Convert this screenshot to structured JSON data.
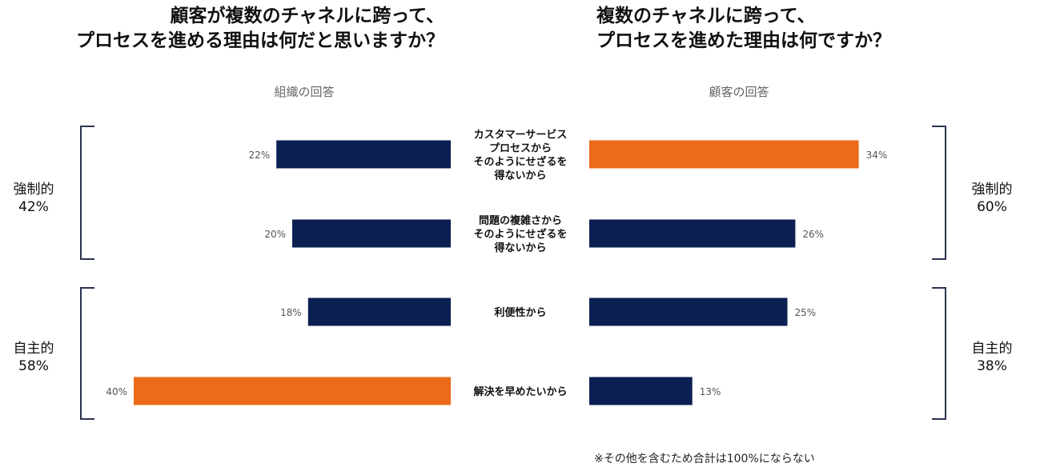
{
  "titles": {
    "left": [
      "顧客が複数のチャネルに跨って、",
      "プロセスを進める理由は何だと思いますか？"
    ],
    "right": [
      "複数のチャネルに跨って、",
      "プロセスを進めた理由は何ですか？"
    ]
  },
  "colors": {
    "navy": "#0b1f52",
    "orange": "#ec6a1a",
    "bracket": "#2b3450"
  },
  "groups": {
    "left": [
      {
        "name": "強制的",
        "value": "42%"
      },
      {
        "name": "自主的",
        "value": "58%"
      }
    ],
    "right": [
      {
        "name": "強制的",
        "value": "60%"
      },
      {
        "name": "自主的",
        "value": "38%"
      }
    ]
  },
  "note": "※その他を含むため合計は100%にならない",
  "chart_data": {
    "type": "bar",
    "orientation": "horizontal-butterfly",
    "categories": [
      "カスタマーサービス\nプロセスから\nそのようにせざるを\n得ないから",
      "問題の複雑さから\nそのようにせざるを\n得ないから",
      "利便性から",
      "解決を早めたいから"
    ],
    "series": [
      {
        "name": "組織の回答",
        "values": [
          22,
          20,
          18,
          40
        ],
        "highlight_index": 3
      },
      {
        "name": "顧客の回答",
        "values": [
          34,
          26,
          25,
          13
        ],
        "highlight_index": 0
      }
    ],
    "value_suffix": "%",
    "xlim": [
      0,
      40
    ]
  }
}
